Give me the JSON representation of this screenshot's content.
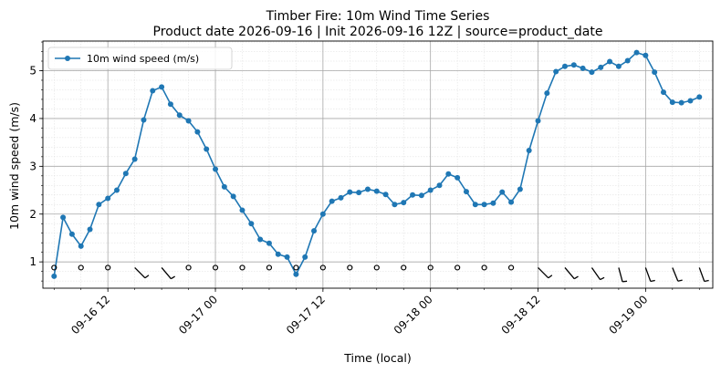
{
  "chart_data": {
    "type": "line",
    "title": "Timber Fire: 10m Wind Time Series",
    "subtitle": "Product date 2026-09-16 | Init 2026-09-16 12Z | source=product_date",
    "xlabel": "Time (local)",
    "ylabel": "10m wind speed (m/s)",
    "x_start": "2026-09-16 06:00",
    "x_step_hours": 1,
    "xlim": [
      "2026-09-16 04:45",
      "2026-09-19 07:30"
    ],
    "ylim": [
      0.45,
      5.62
    ],
    "x_ticks": [
      {
        "label": "09-16 12",
        "time": "2026-09-16 12:00"
      },
      {
        "label": "09-17 00",
        "time": "2026-09-17 00:00"
      },
      {
        "label": "09-17 12",
        "time": "2026-09-17 12:00"
      },
      {
        "label": "09-18 00",
        "time": "2026-09-18 00:00"
      },
      {
        "label": "09-18 12",
        "time": "2026-09-18 12:00"
      },
      {
        "label": "09-19 00",
        "time": "2026-09-19 00:00"
      }
    ],
    "y_ticks": [
      1,
      2,
      3,
      4,
      5
    ],
    "grid": true,
    "minor_grid": true,
    "legend": "upper left",
    "series": [
      {
        "name": "10m wind speed (m/s)",
        "color": "#1f77b4",
        "marker": "circle",
        "values": [
          0.7,
          1.93,
          1.58,
          1.33,
          1.68,
          2.2,
          2.33,
          2.5,
          2.85,
          3.15,
          3.97,
          4.58,
          4.66,
          4.3,
          4.07,
          3.95,
          3.72,
          3.36,
          2.94,
          2.57,
          2.37,
          2.08,
          1.8,
          1.47,
          1.39,
          1.16,
          1.1,
          0.74,
          1.1,
          1.65,
          2.0,
          2.27,
          2.34,
          2.46,
          2.45,
          2.52,
          2.48,
          2.41,
          2.2,
          2.24,
          2.4,
          2.39,
          2.5,
          2.6,
          2.84,
          2.76,
          2.47,
          2.2,
          2.2,
          2.23,
          2.46,
          2.25,
          2.52,
          3.33,
          3.95,
          4.53,
          4.98,
          5.09,
          5.12,
          5.05,
          4.97,
          5.07,
          5.19,
          5.09,
          5.21,
          5.38,
          5.32,
          4.97,
          4.55,
          4.34,
          4.33,
          4.37,
          4.45
        ]
      }
    ],
    "wind_barbs": {
      "y": 0.88,
      "color": "#000000",
      "items": [
        {
          "time": "2026-09-16 06:00",
          "type": "calm"
        },
        {
          "time": "2026-09-16 09:00",
          "type": "calm"
        },
        {
          "time": "2026-09-16 12:00",
          "type": "calm"
        },
        {
          "time": "2026-09-16 15:00",
          "type": "barb",
          "toward_deg": 135
        },
        {
          "time": "2026-09-16 18:00",
          "type": "barb",
          "toward_deg": 140
        },
        {
          "time": "2026-09-16 21:00",
          "type": "calm"
        },
        {
          "time": "2026-09-17 00:00",
          "type": "calm"
        },
        {
          "time": "2026-09-17 03:00",
          "type": "calm"
        },
        {
          "time": "2026-09-17 06:00",
          "type": "calm"
        },
        {
          "time": "2026-09-17 09:00",
          "type": "calm"
        },
        {
          "time": "2026-09-17 12:00",
          "type": "calm"
        },
        {
          "time": "2026-09-17 15:00",
          "type": "calm"
        },
        {
          "time": "2026-09-17 18:00",
          "type": "calm"
        },
        {
          "time": "2026-09-17 21:00",
          "type": "calm"
        },
        {
          "time": "2026-09-18 00:00",
          "type": "calm"
        },
        {
          "time": "2026-09-18 03:00",
          "type": "calm"
        },
        {
          "time": "2026-09-18 06:00",
          "type": "calm"
        },
        {
          "time": "2026-09-18 09:00",
          "type": "calm"
        },
        {
          "time": "2026-09-18 12:00",
          "type": "barb",
          "toward_deg": 135
        },
        {
          "time": "2026-09-18 15:00",
          "type": "barb",
          "toward_deg": 140
        },
        {
          "time": "2026-09-18 18:00",
          "type": "barb",
          "toward_deg": 145
        },
        {
          "time": "2026-09-18 21:00",
          "type": "barb",
          "toward_deg": 165
        },
        {
          "time": "2026-09-19 00:00",
          "type": "barb",
          "toward_deg": 160
        },
        {
          "time": "2026-09-19 03:00",
          "type": "barb",
          "toward_deg": 158
        },
        {
          "time": "2026-09-19 06:00",
          "type": "barb",
          "toward_deg": 160
        }
      ]
    }
  }
}
